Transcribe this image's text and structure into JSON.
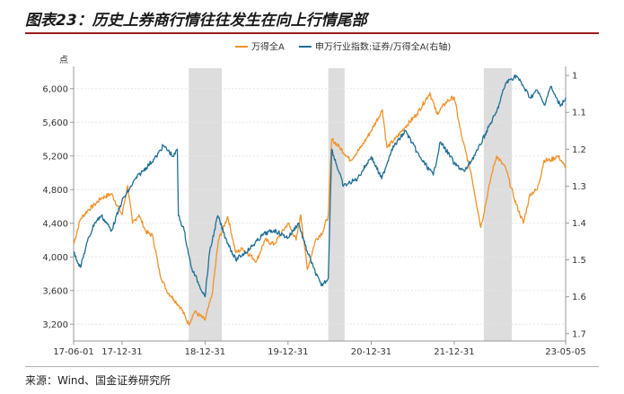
{
  "title": "图表23：历史上券商行情往往发生在向上行情尾部",
  "source": "来源：Wind、国金证券研究所",
  "chart_data": {
    "type": "line",
    "title": "图表23：历史上券商行情往往发生在向上行情尾部",
    "y_left_unit": "点",
    "y_left_range": [
      3000,
      6200
    ],
    "y_left_ticks": [
      "3,200",
      "3,600",
      "4,000",
      "4,400",
      "4,800",
      "5,200",
      "5,600",
      "6,000"
    ],
    "y_left_tick_values": [
      3200,
      3600,
      4000,
      4400,
      4800,
      5200,
      5600,
      6000
    ],
    "y_right_range": [
      1.72,
      0.99
    ],
    "y_right_ticks": [
      "1",
      "1.1",
      "1.2",
      "1.3",
      "1.4",
      "1.5",
      "1.6",
      "1.7"
    ],
    "y_right_tick_values": [
      1.0,
      1.1,
      1.2,
      1.3,
      1.4,
      1.5,
      1.6,
      1.7
    ],
    "x_range": [
      "2017-06-01",
      "2023-05-05"
    ],
    "x_ticks": [
      "17-06-01",
      "17-12-31",
      "18-12-31",
      "19-12-31",
      "20-12-31",
      "21-12-31",
      "23-05-05"
    ],
    "x_tick_dates": [
      "2017-06-01",
      "2017-12-31",
      "2018-12-31",
      "2019-12-31",
      "2020-12-31",
      "2021-12-31",
      "2023-05-05"
    ],
    "shaded_periods": [
      [
        "2018-10-20",
        "2019-03-15"
      ],
      [
        "2020-06-25",
        "2020-09-05"
      ],
      [
        "2022-05-10",
        "2022-09-10"
      ]
    ],
    "grid": "horizontal",
    "legend": "top-center",
    "series": [
      {
        "name": "万得全A",
        "axis": "left",
        "color": "#f0922b",
        "points": [
          [
            "2017-06-01",
            4150
          ],
          [
            "2017-07-01",
            4450
          ],
          [
            "2017-08-01",
            4550
          ],
          [
            "2017-09-01",
            4620
          ],
          [
            "2017-10-01",
            4700
          ],
          [
            "2017-11-15",
            4750
          ],
          [
            "2017-12-31",
            4500
          ],
          [
            "2018-01-25",
            4850
          ],
          [
            "2018-02-15",
            4400
          ],
          [
            "2018-03-15",
            4500
          ],
          [
            "2018-04-15",
            4300
          ],
          [
            "2018-05-15",
            4250
          ],
          [
            "2018-06-15",
            3800
          ],
          [
            "2018-07-15",
            3600
          ],
          [
            "2018-08-15",
            3500
          ],
          [
            "2018-09-15",
            3400
          ],
          [
            "2018-10-20",
            3200
          ],
          [
            "2018-11-15",
            3350
          ],
          [
            "2018-12-31",
            3250
          ],
          [
            "2019-01-31",
            3550
          ],
          [
            "2019-02-28",
            4200
          ],
          [
            "2019-04-10",
            4480
          ],
          [
            "2019-05-15",
            4050
          ],
          [
            "2019-06-15",
            4100
          ],
          [
            "2019-08-15",
            3950
          ],
          [
            "2019-09-20",
            4200
          ],
          [
            "2019-10-31",
            4150
          ],
          [
            "2019-12-31",
            4400
          ],
          [
            "2020-02-05",
            4200
          ],
          [
            "2020-02-25",
            4500
          ],
          [
            "2020-03-25",
            3850
          ],
          [
            "2020-04-30",
            4200
          ],
          [
            "2020-06-01",
            4300
          ],
          [
            "2020-06-25",
            4500
          ],
          [
            "2020-07-10",
            5400
          ],
          [
            "2020-08-15",
            5300
          ],
          [
            "2020-09-30",
            5150
          ],
          [
            "2020-11-15",
            5300
          ],
          [
            "2020-12-31",
            5500
          ],
          [
            "2021-02-18",
            5750
          ],
          [
            "2021-03-10",
            5300
          ],
          [
            "2021-04-15",
            5400
          ],
          [
            "2021-05-31",
            5550
          ],
          [
            "2021-07-20",
            5700
          ],
          [
            "2021-09-15",
            5950
          ],
          [
            "2021-10-15",
            5700
          ],
          [
            "2021-11-30",
            5850
          ],
          [
            "2021-12-31",
            5900
          ],
          [
            "2022-01-31",
            5450
          ],
          [
            "2022-03-15",
            5000
          ],
          [
            "2022-04-27",
            4350
          ],
          [
            "2022-06-15",
            5000
          ],
          [
            "2022-07-05",
            5200
          ],
          [
            "2022-08-15",
            5050
          ],
          [
            "2022-09-20",
            4700
          ],
          [
            "2022-10-31",
            4400
          ],
          [
            "2022-11-30",
            4750
          ],
          [
            "2022-12-31",
            4800
          ],
          [
            "2023-01-31",
            5150
          ],
          [
            "2023-02-28",
            5150
          ],
          [
            "2023-03-31",
            5200
          ],
          [
            "2023-04-15",
            5150
          ],
          [
            "2023-05-05",
            5050
          ]
        ]
      },
      {
        "name": "申万行业指数:证券/万得全A(右轴)",
        "axis": "right",
        "color": "#1f6f96",
        "points": [
          [
            "2017-06-01",
            1.48
          ],
          [
            "2017-07-01",
            1.52
          ],
          [
            "2017-08-01",
            1.45
          ],
          [
            "2017-09-01",
            1.4
          ],
          [
            "2017-10-01",
            1.38
          ],
          [
            "2017-11-15",
            1.42
          ],
          [
            "2017-12-31",
            1.34
          ],
          [
            "2018-01-31",
            1.31
          ],
          [
            "2018-02-28",
            1.28
          ],
          [
            "2018-03-31",
            1.26
          ],
          [
            "2018-05-31",
            1.22
          ],
          [
            "2018-06-30",
            1.19
          ],
          [
            "2018-08-15",
            1.22
          ],
          [
            "2018-08-31",
            1.2
          ],
          [
            "2018-09-05",
            1.38
          ],
          [
            "2018-09-30",
            1.42
          ],
          [
            "2018-10-31",
            1.52
          ],
          [
            "2018-12-31",
            1.6
          ],
          [
            "2019-01-20",
            1.48
          ],
          [
            "2019-02-25",
            1.38
          ],
          [
            "2019-03-31",
            1.44
          ],
          [
            "2019-05-15",
            1.5
          ],
          [
            "2019-07-15",
            1.47
          ],
          [
            "2019-09-15",
            1.43
          ],
          [
            "2019-10-31",
            1.42
          ],
          [
            "2019-12-31",
            1.44
          ],
          [
            "2020-02-15",
            1.4
          ],
          [
            "2020-03-15",
            1.46
          ],
          [
            "2020-04-20",
            1.52
          ],
          [
            "2020-05-25",
            1.57
          ],
          [
            "2020-06-25",
            1.55
          ],
          [
            "2020-07-10",
            1.2
          ],
          [
            "2020-08-31",
            1.3
          ],
          [
            "2020-10-31",
            1.28
          ],
          [
            "2020-12-31",
            1.22
          ],
          [
            "2021-02-15",
            1.28
          ],
          [
            "2021-03-31",
            1.2
          ],
          [
            "2021-05-31",
            1.15
          ],
          [
            "2021-07-31",
            1.22
          ],
          [
            "2021-09-30",
            1.27
          ],
          [
            "2021-10-31",
            1.18
          ],
          [
            "2021-12-15",
            1.22
          ],
          [
            "2021-12-31",
            1.24
          ],
          [
            "2022-02-15",
            1.26
          ],
          [
            "2022-04-15",
            1.2
          ],
          [
            "2022-05-31",
            1.14
          ],
          [
            "2022-07-05",
            1.1
          ],
          [
            "2022-08-15",
            1.02
          ],
          [
            "2022-09-30",
            1.0
          ],
          [
            "2022-10-31",
            1.03
          ],
          [
            "2022-11-30",
            1.06
          ],
          [
            "2022-12-31",
            1.04
          ],
          [
            "2023-01-31",
            1.08
          ],
          [
            "2023-02-28",
            1.03
          ],
          [
            "2023-03-31",
            1.07
          ],
          [
            "2023-04-15",
            1.08
          ],
          [
            "2023-05-05",
            1.06
          ]
        ]
      }
    ]
  }
}
